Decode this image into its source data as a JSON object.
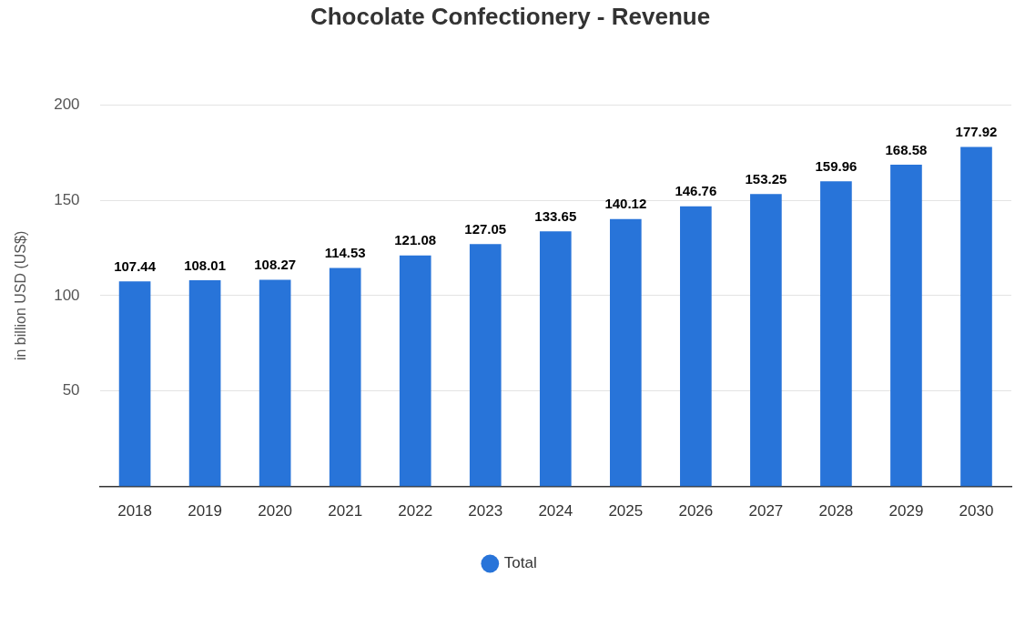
{
  "chart_data": {
    "type": "bar",
    "title": "Chocolate Confectionery - Revenue",
    "ylabel": "in billion USD (US$)",
    "categories": [
      "2018",
      "2019",
      "2020",
      "2021",
      "2022",
      "2023",
      "2024",
      "2025",
      "2026",
      "2027",
      "2028",
      "2029",
      "2030"
    ],
    "series": [
      {
        "name": "Total",
        "color": "#2874d9",
        "values": [
          107.44,
          108.01,
          108.27,
          114.53,
          121.08,
          127.05,
          133.65,
          140.12,
          146.76,
          153.25,
          159.96,
          168.58,
          177.92
        ]
      }
    ],
    "ylim": [
      0,
      200
    ],
    "yticks": [
      50,
      100,
      150,
      200
    ],
    "grid": "y",
    "legend": "bottom",
    "data_labels": true
  }
}
